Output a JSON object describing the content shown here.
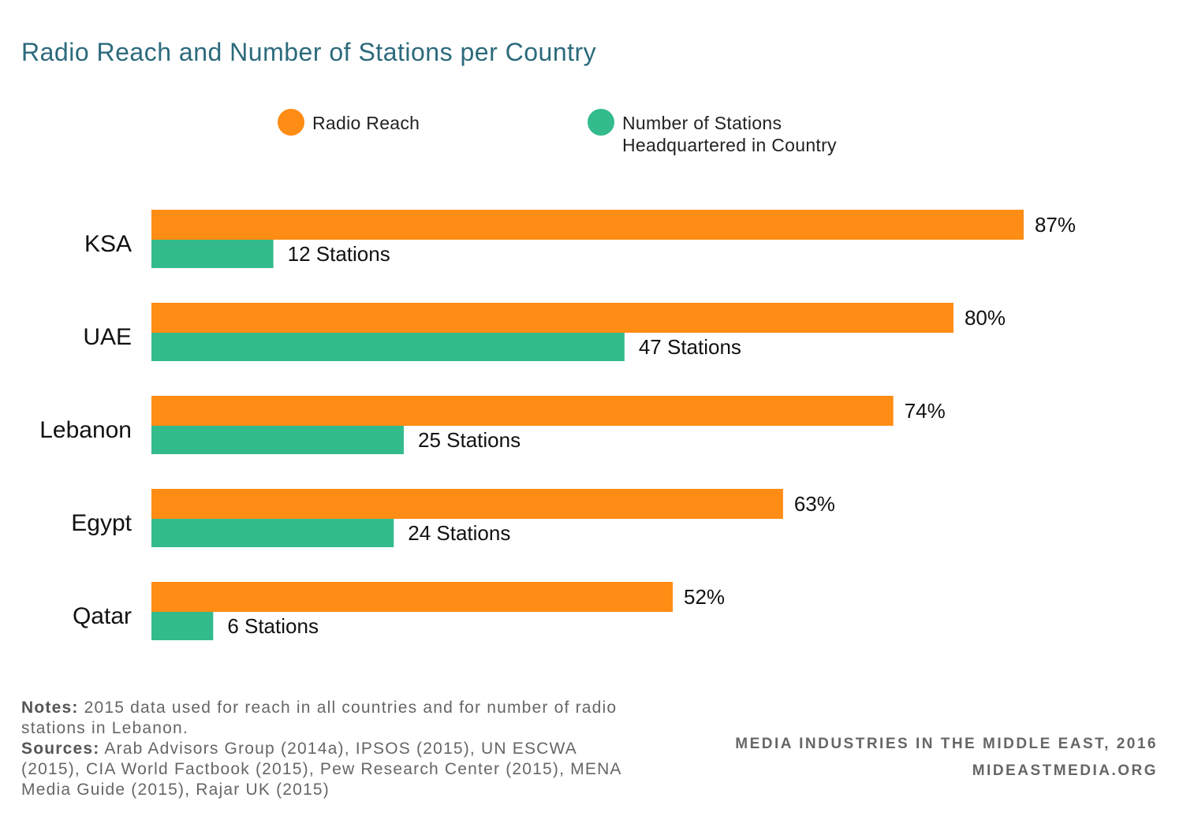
{
  "title": "Radio Reach and Number of Stations per Country",
  "legend": [
    {
      "label": "Radio Reach",
      "color": "#FF8C14"
    },
    {
      "label": "Number of Stations\n Headquartered in Country",
      "color": "#33BB8C"
    }
  ],
  "chart_data": {
    "type": "bar",
    "orientation": "horizontal",
    "categories": [
      "KSA",
      "UAE",
      "Lebanon",
      "Egypt",
      "Qatar"
    ],
    "series": [
      {
        "name": "Radio Reach",
        "color": "#FF8C14",
        "values": [
          87,
          80,
          74,
          63,
          52
        ],
        "labels": [
          "87%",
          "80%",
          "74%",
          "63%",
          "52%"
        ]
      },
      {
        "name": "Number of Stations Headquartered in Country",
        "color": "#33BB8C",
        "values": [
          12,
          47,
          25,
          24,
          6
        ],
        "labels": [
          "12 Stations",
          "47 Stations",
          "25 Stations",
          "24 Stations",
          "6 Stations"
        ]
      }
    ],
    "grid": false,
    "legend_position": "top"
  },
  "notes": {
    "notes_label": "Notes:",
    "notes_text": "2015 data used for reach in all countries and for number of radio stations in Lebanon.",
    "sources_label": "Sources:",
    "sources_text": "Arab Advisors Group (2014a), IPSOS (2015), UN ESCWA (2015), CIA World Factbook (2015), Pew Research Center (2015), MENA Media Guide (2015), Rajar UK (2015)"
  },
  "credit": {
    "line1": "MEDIA INDUSTRIES IN THE MIDDLE EAST, 2016",
    "line2": "MIDEASTMEDIA.ORG"
  }
}
